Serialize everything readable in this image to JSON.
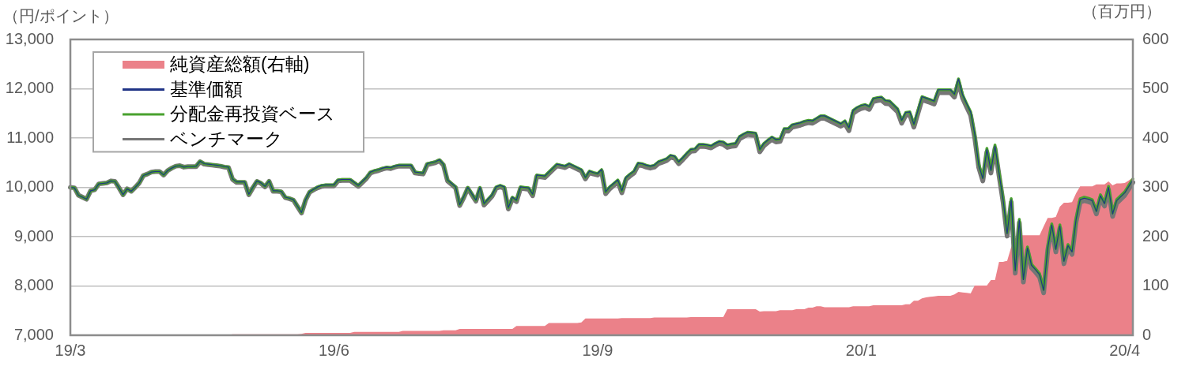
{
  "chart_data": {
    "type": "line",
    "ylabel": "（円/ポイント）",
    "y2label": "（百万円）",
    "categories": [
      "19/3",
      null,
      null,
      null,
      null,
      null,
      null,
      null,
      null,
      null,
      null,
      null,
      null,
      null,
      null,
      null,
      null,
      null,
      null,
      null,
      null,
      null,
      null,
      null,
      null,
      null,
      null,
      null,
      null,
      null,
      null,
      null,
      null,
      null,
      null,
      null,
      null,
      null,
      null,
      null,
      null,
      null,
      null,
      null,
      null,
      null,
      null,
      null,
      null,
      null,
      null,
      null,
      null,
      null,
      null,
      null,
      null,
      null,
      null,
      null,
      null,
      null,
      null,
      null,
      null,
      "19/6",
      null,
      null,
      null,
      null,
      null,
      null,
      null,
      null,
      null,
      null,
      null,
      null,
      null,
      null,
      null,
      null,
      null,
      null,
      null,
      null,
      null,
      null,
      null,
      null,
      null,
      null,
      null,
      null,
      null,
      null,
      null,
      null,
      null,
      null,
      null,
      null,
      null,
      null,
      null,
      null,
      null,
      null,
      null,
      null,
      null,
      null,
      null,
      null,
      null,
      null,
      null,
      null,
      null,
      null,
      null,
      null,
      null,
      null,
      null,
      null,
      null,
      null,
      null,
      null,
      "19/9",
      null,
      null,
      null,
      null,
      null,
      null,
      null,
      null,
      null,
      null,
      null,
      null,
      null,
      null,
      null,
      null,
      null,
      null,
      null,
      null,
      null,
      null,
      null,
      null,
      null,
      null,
      null,
      null,
      null,
      null,
      null,
      null,
      null,
      null,
      null,
      null,
      null,
      null,
      null,
      null,
      null,
      null,
      null,
      null,
      null,
      null,
      null,
      null,
      null,
      null,
      null,
      null,
      null,
      null,
      null,
      null,
      null,
      null,
      null,
      null,
      null,
      null,
      null,
      null,
      "20/1",
      null,
      null,
      null,
      null,
      null,
      null,
      null,
      null,
      null,
      null,
      null,
      null,
      null,
      null,
      null,
      null,
      null,
      null,
      null,
      null,
      null,
      null,
      null,
      null,
      null,
      null,
      null,
      null,
      null,
      null,
      null,
      null,
      null,
      null,
      null,
      null,
      null,
      null,
      null,
      null,
      null,
      null,
      null,
      null,
      null,
      null,
      null,
      null,
      null,
      null,
      null,
      null,
      null,
      null,
      null,
      null,
      null,
      null,
      null,
      null,
      null,
      null,
      null,
      null,
      "20/4",
      null,
      null
    ],
    "ylim": [
      7000,
      13000
    ],
    "yticks": [
      {
        "value": 7000,
        "label": "7,000"
      },
      {
        "value": 8000,
        "label": "8,000"
      },
      {
        "value": 9000,
        "label": "9,000"
      },
      {
        "value": 10000,
        "label": "10,000"
      },
      {
        "value": 11000,
        "label": "11,000"
      },
      {
        "value": 12000,
        "label": "12,000"
      },
      {
        "value": 13000,
        "label": "13,000"
      }
    ],
    "y2lim": [
      0,
      600
    ],
    "y2ticks": [
      0,
      100,
      200,
      300,
      400,
      500,
      600
    ],
    "grid": "y",
    "legend": "top left",
    "marker": "none",
    "line_style": "solid",
    "series": [
      {
        "name": "純資産総額(右軸)",
        "type": "area",
        "axis": "y2",
        "color": "#eb8189",
        "values": [
          0,
          0,
          0,
          0,
          0,
          0,
          0,
          0,
          0,
          0,
          0,
          0,
          0,
          0,
          0,
          0,
          0,
          0,
          1,
          1,
          1,
          1,
          1,
          1,
          1,
          1,
          1,
          1,
          1,
          1,
          1,
          1,
          1,
          1,
          1,
          1,
          1,
          1,
          1,
          1,
          2,
          2,
          2,
          2,
          2,
          2,
          2,
          2,
          2,
          2,
          2,
          2,
          2,
          2,
          2,
          2,
          2,
          3,
          5,
          5,
          5,
          5,
          5,
          5,
          5,
          5,
          5,
          5,
          5,
          5,
          7,
          7,
          7,
          7,
          7,
          7,
          7,
          7,
          7,
          7,
          7,
          7,
          9,
          9,
          9,
          9,
          9,
          9,
          9,
          9,
          9,
          9,
          10,
          10,
          10,
          10,
          13,
          13,
          13,
          13,
          13,
          13,
          13,
          13,
          13,
          13,
          13,
          13,
          13,
          13,
          19,
          19,
          19,
          19,
          19,
          19,
          19,
          19,
          25,
          25,
          25,
          25,
          25,
          25,
          25,
          25,
          26,
          34,
          34,
          34,
          34,
          34,
          34,
          34,
          34,
          34,
          35,
          35,
          35,
          35,
          35,
          35,
          35,
          35,
          36,
          36,
          36,
          36,
          36,
          36,
          36,
          36,
          36,
          37,
          37,
          37,
          37,
          37,
          37,
          37,
          37,
          37,
          53,
          53,
          53,
          53,
          53,
          53,
          53,
          53,
          48,
          49,
          49,
          49,
          49,
          51,
          51,
          51,
          51,
          53,
          53,
          53,
          56,
          56,
          59,
          59,
          57,
          57,
          57,
          57,
          57,
          57,
          57,
          59,
          59,
          59,
          59,
          59,
          61,
          61,
          61,
          61,
          61,
          61,
          61,
          61,
          63,
          63,
          70,
          70,
          75,
          77,
          78,
          79,
          80,
          80,
          80,
          80,
          83,
          88,
          87,
          86,
          85,
          101,
          101,
          101,
          101,
          112,
          112,
          149,
          149,
          151,
          179,
          195,
          203,
          203,
          203,
          203,
          203,
          203,
          221,
          238,
          238,
          240,
          261,
          269,
          269,
          270,
          288,
          302,
          302,
          302,
          302,
          306,
          306,
          306,
          312,
          304,
          308,
          308,
          309,
          314,
          320
        ]
      },
      {
        "name": "基準価額",
        "color": "#203486",
        "values": [
          10000,
          9990,
          9840,
          9800,
          9760,
          9930,
          9950,
          10070,
          10080,
          10090,
          10130,
          10120,
          9990,
          9850,
          9970,
          9920,
          10000,
          10090,
          10240,
          10270,
          10310,
          10320,
          10320,
          10250,
          10340,
          10390,
          10430,
          10440,
          10410,
          10420,
          10420,
          10430,
          10530,
          10480,
          10470,
          10460,
          10450,
          10440,
          10420,
          10410,
          10170,
          10110,
          10110,
          10110,
          9860,
          10000,
          10130,
          10090,
          10020,
          10130,
          9930,
          9930,
          9920,
          9800,
          9780,
          9750,
          9620,
          9490,
          9750,
          9910,
          9960,
          10010,
          10040,
          10050,
          10050,
          10050,
          10150,
          10160,
          10160,
          10160,
          10100,
          10040,
          10120,
          10200,
          10310,
          10340,
          10360,
          10390,
          10410,
          10400,
          10430,
          10450,
          10450,
          10450,
          10450,
          10310,
          10300,
          10290,
          10480,
          10500,
          10520,
          10560,
          10470,
          10150,
          10080,
          10010,
          9650,
          9810,
          10000,
          9870,
          9740,
          10000,
          9670,
          9760,
          9850,
          10010,
          10040,
          10010,
          9590,
          9800,
          9740,
          10010,
          10000,
          9990,
          9860,
          10250,
          10240,
          10230,
          10310,
          10390,
          10470,
          10450,
          10430,
          10480,
          10440,
          10400,
          10360,
          10200,
          10330,
          10300,
          10280,
          10360,
          9910,
          10010,
          10080,
          10150,
          9930,
          10200,
          10270,
          10330,
          10490,
          10480,
          10450,
          10430,
          10450,
          10520,
          10550,
          10580,
          10650,
          10630,
          10520,
          10600,
          10690,
          10770,
          10780,
          10870,
          10870,
          10860,
          10840,
          10890,
          10930,
          10920,
          10860,
          10880,
          10890,
          11030,
          11080,
          11120,
          11110,
          11100,
          10770,
          10890,
          10960,
          11020,
          10970,
          10980,
          11190,
          11190,
          11270,
          11290,
          11310,
          11340,
          11360,
          11350,
          11400,
          11450,
          11450,
          11410,
          11370,
          11330,
          11290,
          11350,
          11210,
          11560,
          11620,
          11660,
          11680,
          11640,
          11800,
          11820,
          11830,
          11760,
          11750,
          11670,
          11590,
          11360,
          11520,
          11530,
          11280,
          11560,
          11840,
          11810,
          11780,
          11750,
          11980,
          11980,
          11980,
          11980,
          11890,
          12200,
          11880,
          11700,
          11530,
          11080,
          10450,
          10180,
          10770,
          10340,
          10840,
          10290,
          9750,
          9060,
          9750,
          8310,
          9330,
          8130,
          8770,
          8420,
          8330,
          8230,
          7910,
          8770,
          9240,
          8740,
          9220,
          8500,
          8820,
          8690,
          9350,
          9750,
          9780,
          9760,
          9730,
          9510,
          9830,
          9670,
          10000,
          9460,
          9730,
          9810,
          9890,
          10020,
          10150
        ]
      },
      {
        "name": "分配金再投資ベース",
        "color": "#48a12e",
        "values": [
          10000,
          9990,
          9840,
          9800,
          9760,
          9930,
          9950,
          10070,
          10080,
          10090,
          10130,
          10120,
          9990,
          9850,
          9970,
          9920,
          10000,
          10090,
          10240,
          10270,
          10310,
          10320,
          10320,
          10250,
          10340,
          10390,
          10430,
          10440,
          10410,
          10420,
          10420,
          10430,
          10530,
          10480,
          10470,
          10460,
          10450,
          10440,
          10420,
          10410,
          10170,
          10110,
          10110,
          10110,
          9860,
          10000,
          10130,
          10090,
          10020,
          10130,
          9930,
          9930,
          9920,
          9800,
          9780,
          9750,
          9620,
          9490,
          9750,
          9910,
          9960,
          10010,
          10040,
          10050,
          10050,
          10050,
          10150,
          10160,
          10160,
          10160,
          10100,
          10040,
          10120,
          10200,
          10310,
          10340,
          10360,
          10390,
          10410,
          10400,
          10430,
          10450,
          10450,
          10450,
          10450,
          10310,
          10300,
          10290,
          10480,
          10500,
          10520,
          10560,
          10470,
          10150,
          10080,
          10010,
          9650,
          9810,
          10000,
          9870,
          9740,
          10000,
          9670,
          9760,
          9850,
          10010,
          10040,
          10010,
          9590,
          9800,
          9740,
          10010,
          10000,
          9990,
          9860,
          10250,
          10240,
          10230,
          10310,
          10390,
          10470,
          10450,
          10430,
          10480,
          10440,
          10400,
          10360,
          10200,
          10330,
          10300,
          10280,
          10360,
          9910,
          10010,
          10080,
          10150,
          9930,
          10200,
          10270,
          10330,
          10490,
          10480,
          10450,
          10430,
          10450,
          10520,
          10550,
          10580,
          10650,
          10630,
          10520,
          10600,
          10690,
          10770,
          10780,
          10870,
          10870,
          10860,
          10840,
          10890,
          10930,
          10920,
          10860,
          10880,
          10890,
          11030,
          11080,
          11120,
          11110,
          11100,
          10770,
          10890,
          10960,
          11020,
          10970,
          10980,
          11190,
          11190,
          11270,
          11290,
          11310,
          11340,
          11360,
          11350,
          11400,
          11450,
          11450,
          11410,
          11370,
          11330,
          11290,
          11350,
          11210,
          11560,
          11620,
          11660,
          11680,
          11640,
          11800,
          11820,
          11830,
          11760,
          11750,
          11670,
          11590,
          11360,
          11520,
          11530,
          11280,
          11560,
          11840,
          11810,
          11780,
          11750,
          11980,
          11980,
          11980,
          11980,
          11890,
          12200,
          11880,
          11700,
          11530,
          11080,
          10470,
          10200,
          10790,
          10360,
          10860,
          10310,
          9770,
          9080,
          9770,
          8330,
          9350,
          8150,
          8790,
          8440,
          8350,
          8250,
          7930,
          8790,
          9260,
          8760,
          9240,
          8520,
          8840,
          8710,
          9370,
          9770,
          9800,
          9780,
          9750,
          9530,
          9850,
          9690,
          10020,
          9480,
          9750,
          9830,
          9910,
          10040,
          10170
        ]
      },
      {
        "name": "ベンチマーク",
        "color": "#767676",
        "values": [
          10000,
          9990,
          9840,
          9800,
          9760,
          9930,
          9950,
          10070,
          10080,
          10090,
          10130,
          10120,
          9990,
          9850,
          9970,
          9920,
          10000,
          10090,
          10240,
          10270,
          10310,
          10320,
          10320,
          10250,
          10340,
          10390,
          10430,
          10440,
          10410,
          10420,
          10420,
          10420,
          10520,
          10470,
          10460,
          10450,
          10440,
          10430,
          10410,
          10400,
          10160,
          10100,
          10100,
          10100,
          9850,
          9990,
          10120,
          10080,
          10010,
          10120,
          9920,
          9920,
          9910,
          9790,
          9770,
          9740,
          9610,
          9480,
          9740,
          9900,
          9950,
          9990,
          10020,
          10030,
          10030,
          10030,
          10130,
          10140,
          10140,
          10140,
          10080,
          10020,
          10100,
          10180,
          10290,
          10320,
          10340,
          10370,
          10390,
          10380,
          10410,
          10430,
          10430,
          10430,
          10430,
          10290,
          10280,
          10270,
          10460,
          10480,
          10500,
          10540,
          10450,
          10130,
          10060,
          9990,
          9630,
          9790,
          9980,
          9850,
          9720,
          9970,
          9640,
          9730,
          9820,
          9980,
          10010,
          9980,
          9560,
          9770,
          9710,
          9980,
          9970,
          9960,
          9830,
          10220,
          10210,
          10200,
          10280,
          10360,
          10440,
          10420,
          10400,
          10450,
          10410,
          10370,
          10330,
          10170,
          10300,
          10270,
          10250,
          10320,
          9870,
          9970,
          10040,
          10110,
          9890,
          10160,
          10230,
          10290,
          10450,
          10440,
          10410,
          10390,
          10410,
          10480,
          10510,
          10540,
          10610,
          10590,
          10480,
          10560,
          10650,
          10730,
          10740,
          10830,
          10830,
          10820,
          10800,
          10850,
          10890,
          10870,
          10810,
          10830,
          10840,
          10980,
          11030,
          11070,
          11060,
          11050,
          10720,
          10840,
          10910,
          10970,
          10920,
          10930,
          11140,
          11140,
          11220,
          11240,
          11260,
          11290,
          11310,
          11300,
          11350,
          11400,
          11400,
          11360,
          11320,
          11280,
          11240,
          11290,
          11150,
          11500,
          11560,
          11600,
          11620,
          11580,
          11740,
          11760,
          11770,
          11700,
          11690,
          11610,
          11530,
          11300,
          11460,
          11470,
          11220,
          11500,
          11780,
          11750,
          11720,
          11690,
          11920,
          11920,
          11920,
          11920,
          11830,
          12130,
          11810,
          11630,
          11460,
          11010,
          10400,
          10130,
          10720,
          10290,
          10790,
          10240,
          9700,
          9010,
          9700,
          8260,
          9280,
          8080,
          8720,
          8370,
          8280,
          8180,
          7860,
          8720,
          9190,
          8690,
          9170,
          8450,
          8770,
          8640,
          9300,
          9700,
          9730,
          9710,
          9680,
          9460,
          9780,
          9620,
          9950,
          9410,
          9680,
          9760,
          9840,
          9970,
          10100
        ]
      }
    ]
  }
}
